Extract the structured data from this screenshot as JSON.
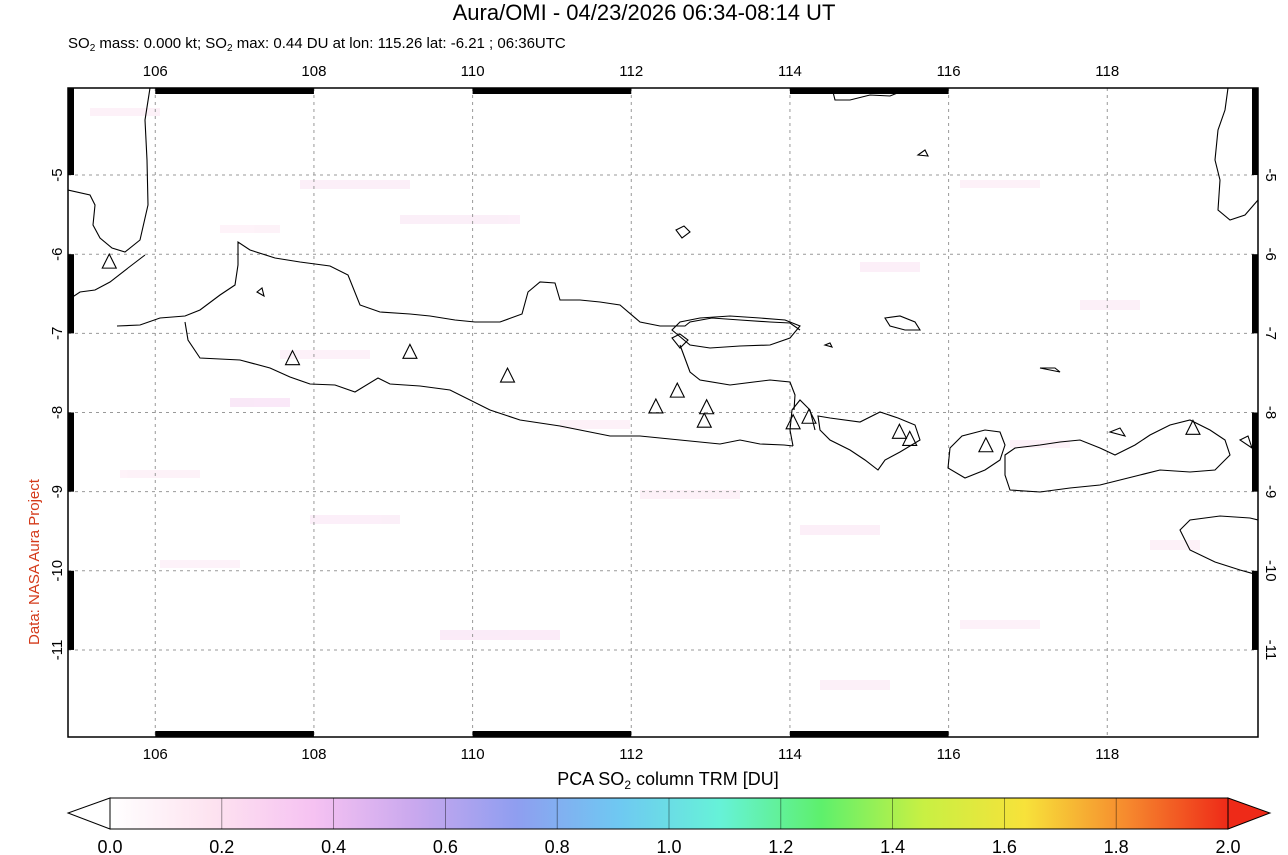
{
  "title": "Aura/OMI - 04/23/2026 06:34-08:14 UT",
  "subtitle": {
    "mass_label": "SO",
    "mass_rest": " mass: 0.000 kt; SO",
    "max_rest": " max: 0.44 DU at lon: 115.26 lat: -6.21 ; 06:36UTC"
  },
  "credit": "Data: NASA Aura Project",
  "map": {
    "lon_range": [
      104.9,
      119.9
    ],
    "lat_range": [
      -12.1,
      -3.9
    ],
    "lon_ticks": [
      106,
      108,
      110,
      112,
      114,
      116,
      118
    ],
    "lat_ticks": [
      -5,
      -6,
      -7,
      -8,
      -9,
      -10,
      -11
    ],
    "grid": "dashed",
    "volcanoes": [
      {
        "lon": 105.42,
        "lat": -6.1
      },
      {
        "lon": 107.73,
        "lat": -7.32
      },
      {
        "lon": 109.21,
        "lat": -7.24
      },
      {
        "lon": 110.44,
        "lat": -7.54
      },
      {
        "lon": 112.31,
        "lat": -7.93
      },
      {
        "lon": 112.58,
        "lat": -7.73
      },
      {
        "lon": 112.95,
        "lat": -7.94
      },
      {
        "lon": 112.92,
        "lat": -8.11
      },
      {
        "lon": 114.04,
        "lat": -8.13
      },
      {
        "lon": 114.24,
        "lat": -8.06
      },
      {
        "lon": 115.38,
        "lat": -8.25
      },
      {
        "lon": 115.51,
        "lat": -8.34
      },
      {
        "lon": 116.47,
        "lat": -8.42
      },
      {
        "lon": 119.08,
        "lat": -8.2
      }
    ],
    "background_color": "#ffffff",
    "coast_color": "#000000"
  },
  "colorbar": {
    "title": "PCA SO",
    "title_rest": " column TRM [DU]",
    "ticks": [
      "0.0",
      "0.2",
      "0.4",
      "0.6",
      "0.8",
      "1.0",
      "1.2",
      "1.4",
      "1.6",
      "1.8",
      "2.0"
    ],
    "range": [
      0,
      2
    ],
    "colors": [
      "#ffffff",
      "#fde3f0",
      "#f6c2f2",
      "#c9a8ee",
      "#8f9ef0",
      "#6fc8f2",
      "#66f2d8",
      "#5ef06c",
      "#c8f043",
      "#f7e23a",
      "#f68a2e",
      "#ee2a18"
    ]
  }
}
